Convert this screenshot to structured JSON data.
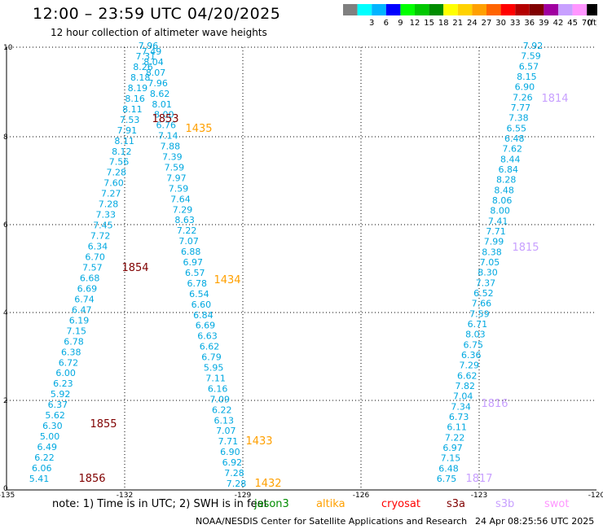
{
  "title": "12:00 – 23:59 UTC 04/20/2025",
  "subtitle": "12 hour collection of altimeter wave heights",
  "colorbar": {
    "unit": "(ft)",
    "bins": [
      {
        "label": "",
        "color": "#808080"
      },
      {
        "label": "3",
        "color": "#00ffff"
      },
      {
        "label": "6",
        "color": "#00b4ff"
      },
      {
        "label": "9",
        "color": "#0000ff"
      },
      {
        "label": "12",
        "color": "#00ff00"
      },
      {
        "label": "15",
        "color": "#00c800"
      },
      {
        "label": "18",
        "color": "#008c00"
      },
      {
        "label": "21",
        "color": "#ffff00"
      },
      {
        "label": "24",
        "color": "#ffd200"
      },
      {
        "label": "27",
        "color": "#ffa000"
      },
      {
        "label": "30",
        "color": "#ff6400"
      },
      {
        "label": "33",
        "color": "#ff0000"
      },
      {
        "label": "36",
        "color": "#b40000"
      },
      {
        "label": "39",
        "color": "#800000"
      },
      {
        "label": "42",
        "color": "#a000a0"
      },
      {
        "label": "45",
        "color": "#c8a0ff"
      },
      {
        "label": "70",
        "color": "#ff96ff"
      },
      {
        "label": "",
        "color": "#000000"
      }
    ]
  },
  "axes": {
    "lon_ticks": [
      "-135",
      "-132",
      "-129",
      "-126",
      "-123",
      "-120"
    ],
    "lat_ticks": [
      "0",
      "2",
      "4",
      "6",
      "8",
      "10"
    ]
  },
  "tracks": [
    {
      "name": "left-track",
      "color": "#00a8e0",
      "values": [
        "7.96",
        "7.49",
        "7.31",
        "8.04",
        "8.26",
        "8.07",
        "8.18",
        "7.96",
        "8.19",
        "8.62",
        "8.16",
        "8.01",
        "8.11",
        "8.00",
        "7.53",
        "6.76",
        "7.91",
        "7.14",
        "8.11",
        "7.88",
        "8.12",
        "7.39",
        "7.56",
        "7.59",
        "7.28",
        "7.97",
        "7.60",
        "7.59",
        "7.27",
        "7.64",
        "7.28",
        "7.29",
        "7.33",
        "8.63",
        "7.45",
        "7.22",
        "7.72",
        "7.07",
        "6.34",
        "6.88",
        "6.70",
        "6.97",
        "7.57",
        "6.57",
        "6.68",
        "6.78",
        "6.69",
        "6.54",
        "6.74",
        "6.60",
        "6.47",
        "6.84",
        "6.19",
        "6.69",
        "7.15",
        "6.63",
        "6.78",
        "6.62",
        "6.38",
        "6.79",
        "6.72",
        "5.95",
        "6.00",
        "7.11",
        "6.23",
        "6.16",
        "5.92",
        "7.09",
        "6.37",
        "6.22",
        "5.62",
        "6.13",
        "6.30",
        "7.07",
        "5.00",
        "7.71",
        "6.49",
        "6.90",
        "6.22",
        "6.92",
        "6.06",
        "7.28",
        "5.41",
        "7.28"
      ]
    },
    {
      "name": "right-track",
      "color": "#00a8e0",
      "values": [
        "7.92",
        "7.59",
        "6.57",
        "8.15",
        "6.90",
        "7.26",
        "7.77",
        "7.38",
        "6.55",
        "6.48",
        "7.62",
        "8.44",
        "6.84",
        "8.28",
        "8.48",
        "8.06",
        "8.00",
        "7.41",
        "7.71",
        "7.99",
        "8.38",
        "7.05",
        "8.30",
        "7.37",
        "6.52",
        "7.66",
        "7.59",
        "6.71",
        "8.03",
        "6.75",
        "6.36",
        "7.29",
        "6.62",
        "7.82",
        "7.04",
        "7.34",
        "6.73",
        "6.11",
        "7.22",
        "6.97",
        "7.15",
        "6.48",
        "6.75"
      ]
    }
  ],
  "time_labels": [
    {
      "text": "1853",
      "color": "#800000"
    },
    {
      "text": "1854",
      "color": "#800000"
    },
    {
      "text": "1855",
      "color": "#800000"
    },
    {
      "text": "1856",
      "color": "#800000"
    },
    {
      "text": "1435",
      "color": "#ffa000"
    },
    {
      "text": "1434",
      "color": "#ffa000"
    },
    {
      "text": "1433",
      "color": "#ffa000"
    },
    {
      "text": "1432",
      "color": "#ffa000"
    },
    {
      "text": "1814",
      "color": "#c8a0ff"
    },
    {
      "text": "1815",
      "color": "#c8a0ff"
    },
    {
      "text": "1816",
      "color": "#c8a0ff"
    },
    {
      "text": "1817",
      "color": "#c8a0ff"
    }
  ],
  "note": "note:  1) Time is in UTC; 2) SWH is in feet",
  "satellites": [
    {
      "name": "jason3",
      "color": "#008c00"
    },
    {
      "name": "altika",
      "color": "#ffa000"
    },
    {
      "name": "cryosat",
      "color": "#ff0000"
    },
    {
      "name": "s3a",
      "color": "#800000"
    },
    {
      "name": "s3b",
      "color": "#c8a0ff"
    },
    {
      "name": "swot",
      "color": "#ff96ff"
    }
  ],
  "footer_left": "NOAA/NESDIS Center for Satellite Applications and Research",
  "footer_right": "24 Apr 08:25:56 UTC 2025"
}
